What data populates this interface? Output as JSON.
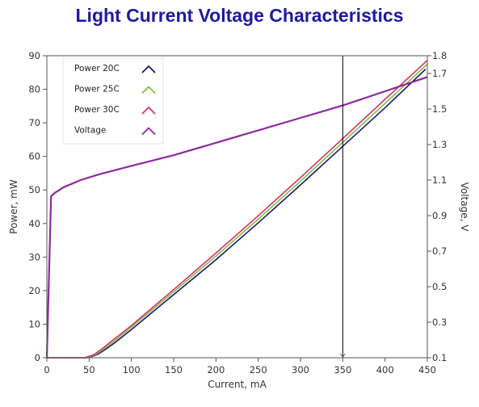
{
  "chart_data": {
    "type": "line",
    "title": "Light Current Voltage Characteristics",
    "xlabel": "Current, mA",
    "ylabel": "Power, mW",
    "y2label": "Voltage, V",
    "xlim": [
      0,
      450
    ],
    "ylim": [
      0,
      90
    ],
    "y2lim": [
      0.1,
      1.8
    ],
    "x_ticks": [
      0,
      50,
      100,
      150,
      200,
      250,
      300,
      350,
      400,
      450
    ],
    "y_ticks": [
      0,
      10,
      20,
      30,
      40,
      50,
      60,
      70,
      80,
      90
    ],
    "y2_ticks": [
      0.1,
      0.3,
      0.5,
      0.7,
      0.9,
      1.1,
      1.3,
      1.5,
      1.7,
      1.8
    ],
    "cursor_x": 350,
    "legend_position": "top-left",
    "series": [
      {
        "name": "Power 20C",
        "axis": "left",
        "color": "#1b1a6e",
        "x": [
          0,
          48,
          55,
          60,
          70,
          80,
          100,
          150,
          200,
          250,
          300,
          350,
          400,
          448
        ],
        "y": [
          0,
          0,
          0.5,
          1.0,
          2.6,
          4.4,
          8.4,
          18.8,
          29.2,
          40.2,
          51.5,
          63.0,
          74.5,
          86.0
        ]
      },
      {
        "name": "Power 25C",
        "axis": "left",
        "color": "#7cc242",
        "x": [
          0,
          46,
          53,
          58,
          68,
          78,
          100,
          150,
          200,
          250,
          300,
          350,
          400,
          450
        ],
        "y": [
          0,
          0,
          0.5,
          1.0,
          2.7,
          4.6,
          9.1,
          19.6,
          30.3,
          41.3,
          52.6,
          64.2,
          75.8,
          87.5
        ]
      },
      {
        "name": "Power 30C",
        "axis": "left",
        "color": "#d6336c",
        "x": [
          0,
          45,
          51,
          56,
          66,
          76,
          100,
          150,
          200,
          250,
          300,
          350,
          400,
          450
        ],
        "y": [
          0,
          0,
          0.5,
          1.0,
          2.8,
          4.8,
          9.6,
          20.3,
          31.2,
          42.3,
          53.7,
          65.3,
          77.0,
          88.6
        ]
      },
      {
        "name": "Voltage",
        "axis": "right",
        "color": "#8b2a9e",
        "x": [
          0,
          5,
          10,
          20,
          40,
          60,
          100,
          150,
          200,
          250,
          300,
          350,
          400,
          450
        ],
        "y": [
          0.1,
          1.01,
          1.03,
          1.06,
          1.1,
          1.13,
          1.18,
          1.24,
          1.31,
          1.38,
          1.45,
          1.52,
          1.6,
          1.68
        ]
      }
    ]
  }
}
